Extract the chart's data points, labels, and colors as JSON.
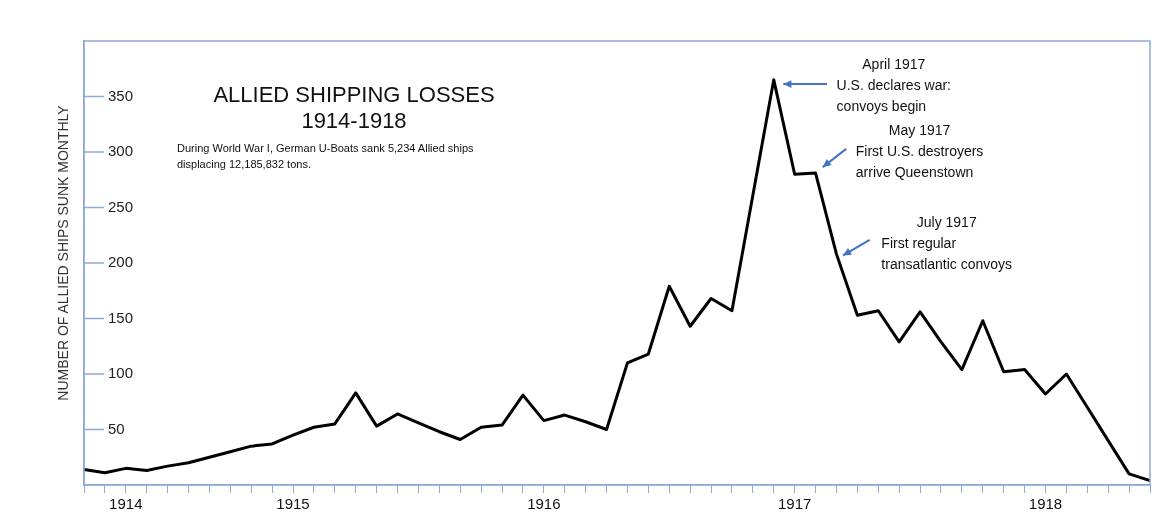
{
  "chart_data": {
    "type": "line",
    "title": "ALLIED SHIPPING LOSSES 1914-1918",
    "subtitle": "During World War I, German U-Boats sank 5,234 Allied ships displacing 12,185,832 tons.",
    "ylabel": "NUMBER OF ALLIED SHIPS SUNK MONTHLY",
    "categories": [
      null,
      null,
      "1914",
      null,
      null,
      null,
      null,
      null,
      null,
      null,
      "1915",
      null,
      null,
      null,
      null,
      null,
      null,
      null,
      null,
      null,
      null,
      null,
      "1916",
      null,
      null,
      null,
      null,
      null,
      null,
      null,
      null,
      null,
      null,
      null,
      "1917",
      null,
      null,
      null,
      null,
      null,
      null,
      null,
      null,
      null,
      null,
      null,
      "1918",
      null,
      null,
      null,
      null,
      null
    ],
    "series": [
      {
        "color": "#000000",
        "values": [
          14,
          11,
          15,
          13,
          17,
          20,
          25,
          30,
          35,
          37,
          45,
          52,
          55,
          83,
          53,
          64,
          56,
          48,
          41,
          52,
          54,
          81,
          58,
          63,
          57,
          50,
          110,
          118,
          179,
          143,
          168,
          157,
          261,
          365,
          280,
          281,
          208,
          153,
          157,
          129,
          156,
          129,
          104,
          148,
          102,
          104,
          82,
          100,
          70,
          40,
          10,
          4
        ]
      }
    ],
    "marker": "none",
    "line_style": "solid",
    "ylim": [
      0,
      400
    ],
    "yticks": [
      50,
      100,
      150,
      200,
      250,
      300,
      350
    ],
    "annotations": [
      "April 1917\nU.S. declares war:\nconvoys begin",
      "May 1917\nFirst U.S. destroyers\narrive Queenstown",
      "July 1917\nFirst regular\ntransatlantic convoys"
    ]
  }
}
